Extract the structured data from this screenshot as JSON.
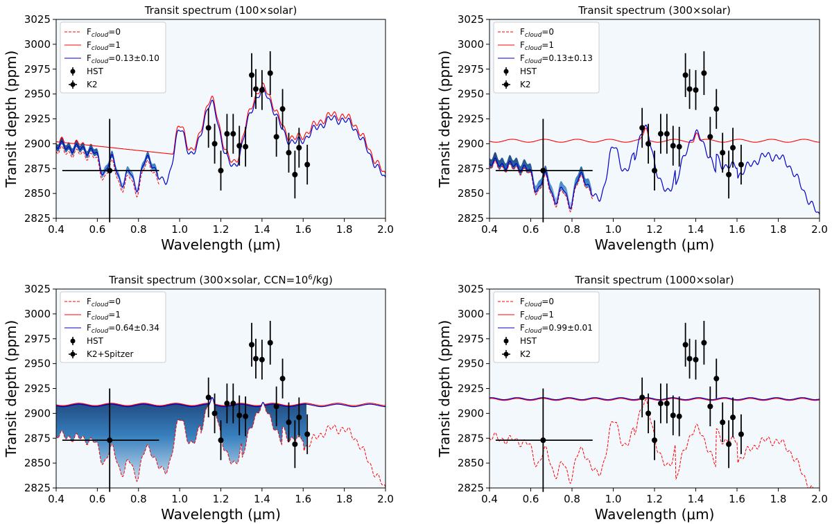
{
  "figure": {
    "description_free": true
  },
  "labels": {
    "fcloud_prefix": "F",
    "fcloud_sub": "cloud"
  },
  "chart_data": [
    {
      "type": "line",
      "title": "Transit spectrum (100×solar)",
      "xlabel": "Wavelength (μm)",
      "ylabel": "Transit depth (ppm)",
      "xlim": [
        0.4,
        2.0
      ],
      "ylim": [
        2825,
        3025
      ],
      "xticks": [
        "0.4",
        "0.6",
        "0.8",
        "1.0",
        "1.2",
        "1.4",
        "1.6",
        "1.8",
        "2.0"
      ],
      "yticks": [
        "2825",
        "2850",
        "2875",
        "2900",
        "2925",
        "2950",
        "2975",
        "3000",
        "3025"
      ],
      "legend": [
        {
          "key": "f0",
          "label": "=0",
          "style": "red-dashed"
        },
        {
          "key": "f1",
          "label": "=1",
          "style": "red-solid"
        },
        {
          "key": "fit",
          "label": "=0.13±0.10",
          "style": "blue-solid"
        },
        {
          "key": "hst",
          "label": "HST",
          "style": "marker"
        },
        {
          "key": "k2",
          "label": "K2",
          "style": "marker-cross"
        }
      ],
      "band": "narrow",
      "hst": [
        {
          "x": 1.14,
          "y": 2916,
          "e": 20
        },
        {
          "x": 1.17,
          "y": 2900,
          "e": 20
        },
        {
          "x": 1.2,
          "y": 2873,
          "e": 20
        },
        {
          "x": 1.23,
          "y": 2910,
          "e": 20
        },
        {
          "x": 1.26,
          "y": 2910,
          "e": 20
        },
        {
          "x": 1.29,
          "y": 2898,
          "e": 20
        },
        {
          "x": 1.32,
          "y": 2897,
          "e": 20
        },
        {
          "x": 1.35,
          "y": 2969,
          "e": 22
        },
        {
          "x": 1.37,
          "y": 2955,
          "e": 20
        },
        {
          "x": 1.4,
          "y": 2954,
          "e": 20
        },
        {
          "x": 1.44,
          "y": 2971,
          "e": 22
        },
        {
          "x": 1.47,
          "y": 2907,
          "e": 20
        },
        {
          "x": 1.5,
          "y": 2935,
          "e": 20
        },
        {
          "x": 1.53,
          "y": 2891,
          "e": 20
        },
        {
          "x": 1.56,
          "y": 2869,
          "e": 24
        },
        {
          "x": 1.58,
          "y": 2896,
          "e": 20
        },
        {
          "x": 1.62,
          "y": 2879,
          "e": 20
        }
      ],
      "k2": {
        "x": 0.66,
        "y": 2873,
        "xerr_lo": 0.23,
        "xerr_hi": 0.24,
        "yerr": 52
      }
    },
    {
      "type": "line",
      "title": "Transit spectrum (300×solar)",
      "xlabel": "Wavelength (μm)",
      "ylabel": "Transit depth (ppm)",
      "xlim": [
        0.4,
        2.0
      ],
      "ylim": [
        2825,
        3025
      ],
      "xticks": [
        "0.4",
        "0.6",
        "0.8",
        "1.0",
        "1.2",
        "1.4",
        "1.6",
        "1.8",
        "2.0"
      ],
      "yticks": [
        "2825",
        "2850",
        "2875",
        "2900",
        "2925",
        "2950",
        "2975",
        "3000",
        "3025"
      ],
      "legend": [
        {
          "key": "f0",
          "label": "=0",
          "style": "red-dashed"
        },
        {
          "key": "f1",
          "label": "=1",
          "style": "red-solid"
        },
        {
          "key": "fit",
          "label": "=0.13±0.13",
          "style": "blue-solid"
        },
        {
          "key": "hst",
          "label": "HST",
          "style": "marker"
        },
        {
          "key": "k2",
          "label": "K2",
          "style": "marker-cross"
        }
      ],
      "band": "medium",
      "hst": [
        {
          "x": 1.14,
          "y": 2916,
          "e": 20
        },
        {
          "x": 1.17,
          "y": 2900,
          "e": 20
        },
        {
          "x": 1.2,
          "y": 2873,
          "e": 20
        },
        {
          "x": 1.23,
          "y": 2910,
          "e": 20
        },
        {
          "x": 1.26,
          "y": 2910,
          "e": 20
        },
        {
          "x": 1.29,
          "y": 2898,
          "e": 20
        },
        {
          "x": 1.32,
          "y": 2897,
          "e": 20
        },
        {
          "x": 1.35,
          "y": 2969,
          "e": 22
        },
        {
          "x": 1.37,
          "y": 2955,
          "e": 20
        },
        {
          "x": 1.4,
          "y": 2954,
          "e": 20
        },
        {
          "x": 1.44,
          "y": 2971,
          "e": 22
        },
        {
          "x": 1.47,
          "y": 2907,
          "e": 20
        },
        {
          "x": 1.5,
          "y": 2935,
          "e": 20
        },
        {
          "x": 1.53,
          "y": 2891,
          "e": 20
        },
        {
          "x": 1.56,
          "y": 2869,
          "e": 24
        },
        {
          "x": 1.58,
          "y": 2896,
          "e": 20
        },
        {
          "x": 1.62,
          "y": 2879,
          "e": 20
        }
      ],
      "k2": {
        "x": 0.66,
        "y": 2873,
        "xerr_lo": 0.23,
        "xerr_hi": 0.24,
        "yerr": 52
      }
    },
    {
      "type": "line",
      "title_pre": "Transit spectrum (300×solar, CCN=10",
      "title_sup": "6",
      "title_post": "/kg)",
      "xlabel": "Wavelength (μm)",
      "ylabel": "Transit depth (ppm)",
      "xlim": [
        0.4,
        2.0
      ],
      "ylim": [
        2825,
        3025
      ],
      "xticks": [
        "0.4",
        "0.6",
        "0.8",
        "1.0",
        "1.2",
        "1.4",
        "1.6",
        "1.8",
        "2.0"
      ],
      "yticks": [
        "2825",
        "2850",
        "2875",
        "2900",
        "2925",
        "2950",
        "2975",
        "3000",
        "3025"
      ],
      "legend": [
        {
          "key": "f0",
          "label": "=0",
          "style": "red-dashed"
        },
        {
          "key": "f1",
          "label": "=1",
          "style": "red-solid"
        },
        {
          "key": "fit",
          "label": "=0.64±0.34",
          "style": "blue-solid"
        },
        {
          "key": "hst",
          "label": "HST",
          "style": "marker"
        },
        {
          "key": "k2",
          "label": "K2+Spitzer",
          "style": "marker-cross"
        }
      ],
      "band": "wide",
      "hst": [
        {
          "x": 1.14,
          "y": 2916,
          "e": 20
        },
        {
          "x": 1.17,
          "y": 2900,
          "e": 20
        },
        {
          "x": 1.2,
          "y": 2873,
          "e": 20
        },
        {
          "x": 1.23,
          "y": 2910,
          "e": 20
        },
        {
          "x": 1.26,
          "y": 2910,
          "e": 20
        },
        {
          "x": 1.29,
          "y": 2898,
          "e": 20
        },
        {
          "x": 1.32,
          "y": 2897,
          "e": 20
        },
        {
          "x": 1.35,
          "y": 2969,
          "e": 22
        },
        {
          "x": 1.37,
          "y": 2955,
          "e": 20
        },
        {
          "x": 1.4,
          "y": 2954,
          "e": 20
        },
        {
          "x": 1.44,
          "y": 2971,
          "e": 22
        },
        {
          "x": 1.47,
          "y": 2907,
          "e": 20
        },
        {
          "x": 1.5,
          "y": 2935,
          "e": 20
        },
        {
          "x": 1.53,
          "y": 2891,
          "e": 20
        },
        {
          "x": 1.56,
          "y": 2869,
          "e": 24
        },
        {
          "x": 1.58,
          "y": 2896,
          "e": 20
        },
        {
          "x": 1.62,
          "y": 2879,
          "e": 20
        }
      ],
      "k2": {
        "x": 0.66,
        "y": 2873,
        "xerr_lo": 0.23,
        "xerr_hi": 0.24,
        "yerr": 52
      }
    },
    {
      "type": "line",
      "title": "Transit spectrum (1000×solar)",
      "xlabel": "Wavelength (μm)",
      "ylabel": "Transit depth (ppm)",
      "xlim": [
        0.4,
        2.0
      ],
      "ylim": [
        2825,
        3025
      ],
      "xticks": [
        "0.4",
        "0.6",
        "0.8",
        "1.0",
        "1.2",
        "1.4",
        "1.6",
        "1.8",
        "2.0"
      ],
      "yticks": [
        "2825",
        "2850",
        "2875",
        "2900",
        "2925",
        "2950",
        "2975",
        "3000",
        "3025"
      ],
      "legend": [
        {
          "key": "f0",
          "label": "=0",
          "style": "red-dashed"
        },
        {
          "key": "f1",
          "label": "=1",
          "style": "red-solid"
        },
        {
          "key": "fit",
          "label": "=0.99±0.01",
          "style": "blue-solid"
        },
        {
          "key": "hst",
          "label": "HST",
          "style": "marker"
        },
        {
          "key": "k2",
          "label": "K2",
          "style": "marker-cross"
        }
      ],
      "band": "none",
      "hst": [
        {
          "x": 1.14,
          "y": 2916,
          "e": 20
        },
        {
          "x": 1.17,
          "y": 2900,
          "e": 20
        },
        {
          "x": 1.2,
          "y": 2873,
          "e": 20
        },
        {
          "x": 1.23,
          "y": 2910,
          "e": 20
        },
        {
          "x": 1.26,
          "y": 2910,
          "e": 20
        },
        {
          "x": 1.29,
          "y": 2898,
          "e": 20
        },
        {
          "x": 1.32,
          "y": 2897,
          "e": 20
        },
        {
          "x": 1.35,
          "y": 2969,
          "e": 22
        },
        {
          "x": 1.37,
          "y": 2955,
          "e": 20
        },
        {
          "x": 1.4,
          "y": 2954,
          "e": 20
        },
        {
          "x": 1.44,
          "y": 2971,
          "e": 22
        },
        {
          "x": 1.47,
          "y": 2907,
          "e": 20
        },
        {
          "x": 1.5,
          "y": 2935,
          "e": 20
        },
        {
          "x": 1.53,
          "y": 2891,
          "e": 20
        },
        {
          "x": 1.56,
          "y": 2869,
          "e": 24
        },
        {
          "x": 1.58,
          "y": 2896,
          "e": 20
        },
        {
          "x": 1.62,
          "y": 2879,
          "e": 20
        }
      ],
      "k2": {
        "x": 0.66,
        "y": 2873,
        "xerr_lo": 0.23,
        "xerr_hi": 0.24,
        "yerr": 52
      }
    }
  ],
  "colors": {
    "bg": "#f3f8fd",
    "red": "#ff0000",
    "blue": "#0000cc",
    "band_dark": "#08306b",
    "band_light": "#6baed6"
  }
}
